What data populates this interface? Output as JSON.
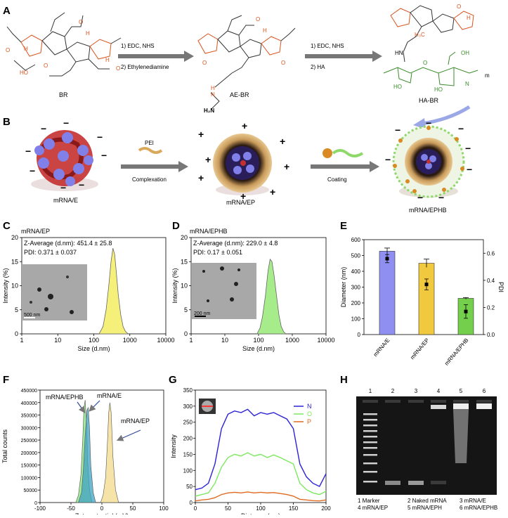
{
  "panel_letters": {
    "A": "A",
    "B": "B",
    "C": "C",
    "D": "D",
    "E": "E",
    "F": "F",
    "G": "G",
    "H": "H"
  },
  "panelA": {
    "mol1": "BR",
    "mol2": "AE-BR",
    "mol3": "HA-BR",
    "step1_line1": "1)  EDC, NHS",
    "step1_line2": "2)  Ethylenediamine",
    "step2_line1": "1)     EDC, NHS",
    "step2_line2": "2)     HA",
    "atoms": {
      "O": "O",
      "OH": "OH",
      "HO": "HO",
      "HN": "HN",
      "H": "H",
      "H2N": "H₂N",
      "H3C": "H₃C",
      "N": "N",
      "m": "m"
    }
  },
  "panelB": {
    "particle1": "mRNA/E",
    "particle2": "mRNA/EP",
    "particle3": "mRNA/EPHB",
    "arrow1_top": "PEI",
    "arrow1_bottom": "Complexation",
    "arrow2_bottom": "Coating",
    "minus": "−",
    "plus": "+"
  },
  "panelC": {
    "sample": "mRNA/EP",
    "zavg": "Z-Average (d.nm): 451.4 ± 25.8",
    "pdi": "PDI: 0.371 ± 0.037",
    "scale": "500 nm",
    "xlabel": "Size (d.nm)",
    "ylabel": "Intensity (%)",
    "xticks": [
      "1",
      "10",
      "100",
      "1000",
      "10000"
    ],
    "yticks": [
      "0",
      "5",
      "10",
      "15",
      "20"
    ]
  },
  "panelD": {
    "sample": "mRNA/EPHB",
    "zavg": "Z-Average (d.nm): 229.0 ± 4.8",
    "pdi": "PDI: 0.17 ± 0.051",
    "scale": "200 nm",
    "xlabel": "Size (d.nm)",
    "ylabel": "Intensity (%)",
    "xticks": [
      "1",
      "10",
      "100",
      "1000",
      "10000"
    ],
    "yticks": [
      "0",
      "5",
      "10",
      "15",
      "20"
    ]
  },
  "panelE": {
    "ylabel_left": "Diameter  (nm)",
    "ylabel_right": "PDI",
    "yticks_left": [
      "0",
      "100",
      "200",
      "300",
      "400",
      "500",
      "600"
    ],
    "yticks_right": [
      "0.0",
      "0.2",
      "0.4",
      "0.6"
    ]
  },
  "panelF": {
    "xlabel": "Zeta potential (mV)",
    "ylabel": "Total counts",
    "xticks": [
      "-100",
      "-50",
      "0",
      "50",
      "100"
    ],
    "yticks": [
      "0",
      "50000",
      "100000",
      "150000",
      "200000",
      "250000",
      "300000",
      "350000",
      "400000",
      "450000"
    ],
    "lab_ephb": "mRNA/EPHB",
    "lab_e": "mRNA/E",
    "lab_ep": "mRNA/EP"
  },
  "panelG": {
    "xlabel": "Distance (nm)",
    "ylabel": "Intensity",
    "xticks": [
      "0",
      "50",
      "100",
      "150",
      "200"
    ],
    "yticks": [
      "0",
      "50",
      "100",
      "150",
      "200",
      "250",
      "300",
      "350"
    ],
    "legend": [
      "N",
      "O",
      "P"
    ]
  },
  "panelH": {
    "lanes": [
      "1",
      "2",
      "3",
      "4",
      "5",
      "6"
    ],
    "legend": [
      {
        "a": "1 Marker",
        "b": "2 Naked mRNA",
        "c": "3 mRNA/E"
      },
      {
        "a": "4 mRNA/EP",
        "b": "5 mRNA/EPH",
        "c": "6 mRNA/EPHB"
      }
    ]
  },
  "chart_data": [
    {
      "type": "area",
      "title": "mRNA/EP size distribution",
      "xlabel": "Size (d.nm)",
      "ylabel": "Intensity (%)",
      "xscale": "log",
      "xlim": [
        1,
        10000
      ],
      "ylim": [
        0,
        20
      ],
      "x": [
        140,
        180,
        220,
        260,
        300,
        340,
        380,
        420,
        480,
        560,
        650,
        760,
        900
      ],
      "series": [
        {
          "name": "mRNA/EP",
          "values": [
            0,
            1.5,
            5,
            10,
            15,
            17.8,
            16.5,
            13,
            8,
            4,
            1.5,
            0.5,
            0
          ]
        }
      ]
    },
    {
      "type": "area",
      "title": "mRNA/EPHB size distribution",
      "xlabel": "Size (d.nm)",
      "ylabel": "Intensity (%)",
      "xscale": "log",
      "xlim": [
        1,
        10000
      ],
      "ylim": [
        0,
        20
      ],
      "x": [
        90,
        110,
        130,
        160,
        190,
        220,
        250,
        290,
        340,
        400,
        470,
        560,
        650
      ],
      "series": [
        {
          "name": "mRNA/EPHB",
          "values": [
            0,
            1.2,
            3.5,
            8,
            13,
            15.5,
            15,
            12,
            8,
            4,
            1.5,
            0.4,
            0
          ]
        }
      ]
    },
    {
      "type": "bar",
      "xlabel": "",
      "ylabel": "Diameter (nm)",
      "ylim": [
        0,
        600
      ],
      "y2label": "PDI",
      "y2lim": [
        0,
        0.7
      ],
      "categories": [
        "mRNA/E",
        "mRNA/EP",
        "mRNA/EPHB"
      ],
      "series": [
        {
          "name": "Diameter",
          "values": [
            527,
            451,
            229
          ],
          "errors": [
            20,
            26,
            5
          ],
          "colors": [
            "#8f8ff2",
            "#f0c93e",
            "#74cf4c"
          ]
        },
        {
          "name": "PDI",
          "values": [
            0.56,
            0.37,
            0.17
          ],
          "errors": [
            0.03,
            0.04,
            0.05
          ]
        }
      ]
    },
    {
      "type": "area",
      "xlabel": "Zeta potential (mV)",
      "ylabel": "Total counts",
      "xlim": [
        -100,
        100
      ],
      "ylim": [
        0,
        450000
      ],
      "series": [
        {
          "name": "mRNA/EPHB",
          "color": "#86e07a",
          "x": [
            -42,
            -38,
            -34,
            -31,
            -29,
            -27,
            -25,
            -23,
            -20,
            -16
          ],
          "values": [
            0,
            30000,
            110000,
            250000,
            380000,
            410000,
            330000,
            160000,
            50000,
            0
          ]
        },
        {
          "name": "mRNA/E",
          "color": "#3fa3c4",
          "x": [
            -38,
            -33,
            -30,
            -27,
            -24,
            -22,
            -20,
            -18,
            -14,
            -10
          ],
          "values": [
            0,
            40000,
            130000,
            270000,
            370000,
            380000,
            300000,
            150000,
            40000,
            0
          ]
        },
        {
          "name": "mRNA/EP",
          "color": "#f1d98a",
          "x": [
            -2,
            2,
            6,
            9,
            11,
            13,
            15,
            18,
            22,
            27
          ],
          "values": [
            0,
            30000,
            100000,
            240000,
            360000,
            400000,
            360000,
            180000,
            50000,
            0
          ]
        }
      ]
    },
    {
      "type": "line",
      "xlabel": "Distance (nm)",
      "ylabel": "Intensity",
      "xlim": [
        0,
        200
      ],
      "ylim": [
        0,
        350
      ],
      "x": [
        0,
        10,
        20,
        30,
        40,
        50,
        60,
        70,
        80,
        90,
        100,
        110,
        120,
        130,
        140,
        150,
        160,
        170,
        180,
        190,
        200
      ],
      "series": [
        {
          "name": "N",
          "color": "#2b22d6",
          "values": [
            40,
            45,
            60,
            120,
            230,
            275,
            285,
            280,
            290,
            270,
            280,
            275,
            280,
            270,
            260,
            230,
            120,
            80,
            60,
            50,
            90
          ]
        },
        {
          "name": "O",
          "color": "#7de860",
          "values": [
            20,
            25,
            30,
            60,
            110,
            140,
            150,
            145,
            155,
            145,
            150,
            140,
            148,
            140,
            130,
            120,
            60,
            40,
            30,
            25,
            35
          ]
        },
        {
          "name": "P",
          "color": "#e06a22",
          "values": [
            5,
            8,
            10,
            15,
            25,
            30,
            32,
            30,
            33,
            30,
            32,
            30,
            31,
            28,
            25,
            20,
            10,
            8,
            6,
            5,
            8
          ]
        }
      ]
    }
  ]
}
